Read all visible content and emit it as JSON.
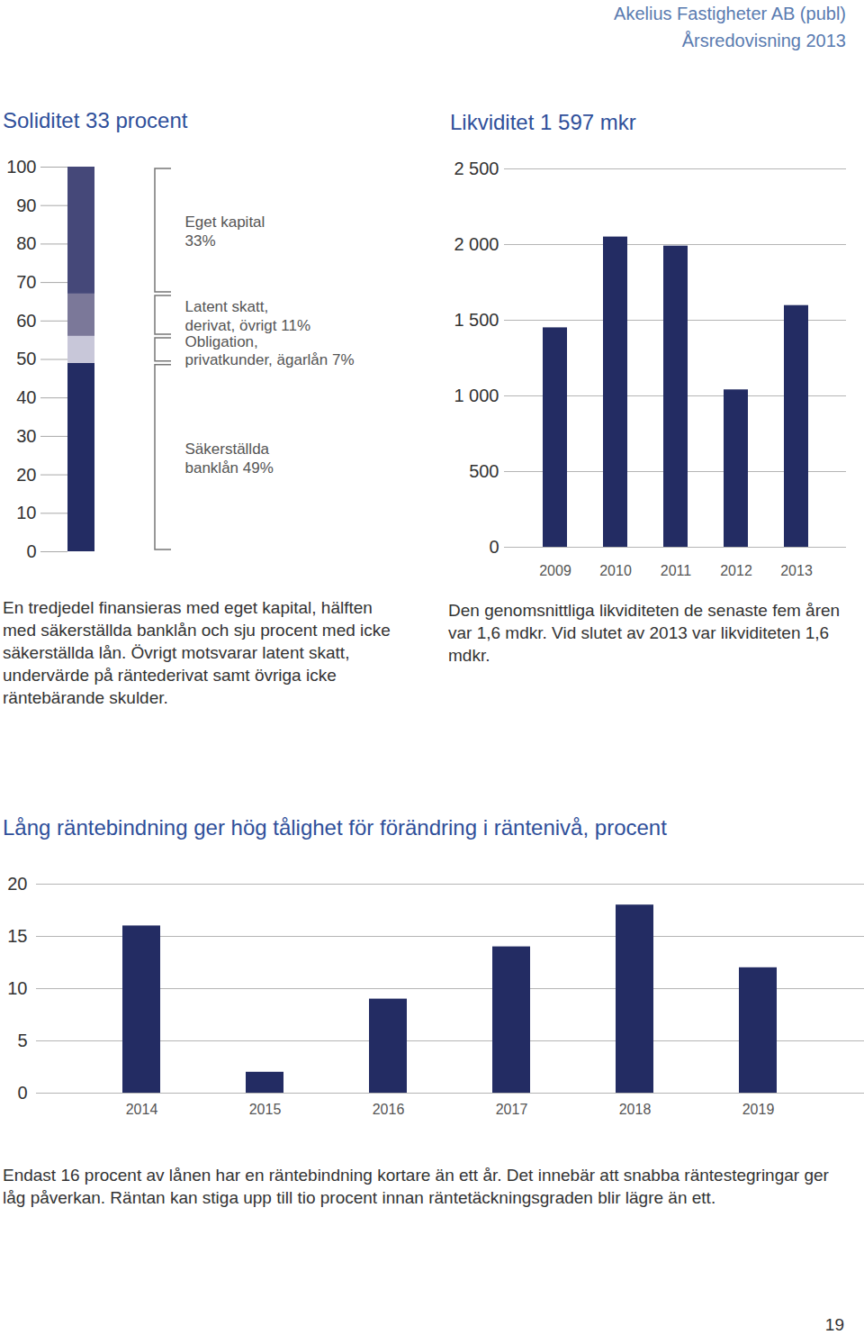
{
  "header": [
    "Akelius Fastigheter AB (publ)",
    "Årsredovisning 2013"
  ],
  "page_number": "19",
  "chart_data": [
    {
      "type": "bar",
      "stacked": true,
      "title": "Soliditet 33 procent",
      "categories": [
        null
      ],
      "series": [
        {
          "name": "Säkerställda\nbanklån 49%",
          "color": "#232c63",
          "values": [
            49
          ]
        },
        {
          "name": "Obligation,\nprivatkunder, ägarlån 7%",
          "color": "#c8c7d9",
          "values": [
            7
          ]
        },
        {
          "name": "Latent skatt,\nderivat, övrigt 11%",
          "color": "#7b7899",
          "values": [
            11
          ]
        },
        {
          "name": "Eget kapital\n33%",
          "color": "#454879",
          "values": [
            33
          ]
        }
      ],
      "ylim": [
        0,
        100
      ],
      "yticks": [
        0,
        10,
        20,
        30,
        40,
        50,
        60,
        70,
        80,
        90,
        100
      ],
      "grid": false,
      "tick_labels": "y",
      "legend": "right",
      "caption": "En tredjedel finansieras med eget kapital, hälften med säkerställda banklån och sju procent med icke säkerställda lån. Övrigt motsvarar latent skatt, undervärde på räntederivat samt övriga icke räntebärande skulder."
    },
    {
      "type": "bar",
      "title": "Likviditet 1 597 mkr",
      "categories": [
        "2009",
        "2010",
        "2011",
        "2012",
        "2013"
      ],
      "values": [
        1450,
        2050,
        1990,
        1040,
        1597
      ],
      "color": "#232c63",
      "ylim": [
        0,
        2500
      ],
      "yticks": [
        0,
        500,
        {
          "value": 1000,
          "label": "1 000"
        },
        {
          "value": 1500,
          "label": "1 500"
        },
        {
          "value": 2000,
          "label": "2 000"
        },
        {
          "value": 2500,
          "label": "2 500"
        }
      ],
      "grid": true,
      "caption": "Den genomsnittliga likviditeten de senaste fem åren var 1,6 mdkr. Vid slutet av 2013 var likviditeten 1,6 mdkr."
    },
    {
      "type": "bar",
      "title": "Lång räntebindning ger hög tålighet för förändring i räntenivå, procent",
      "categories": [
        "2014",
        "2015",
        "2016",
        "2017",
        "2018",
        "2019"
      ],
      "values": [
        16,
        2,
        9,
        14,
        18,
        12
      ],
      "color": "#232c63",
      "ylim": [
        0,
        20
      ],
      "yticks": [
        0,
        5,
        10,
        15,
        20
      ],
      "grid": true,
      "caption": "Endast 16 procent av lånen har en räntebindning kortare än ett år. Det innebär att snabba räntestegringar ger låg påverkan. Räntan kan stiga upp till tio procent innan räntetäckningsgraden blir lägre än ett."
    }
  ]
}
